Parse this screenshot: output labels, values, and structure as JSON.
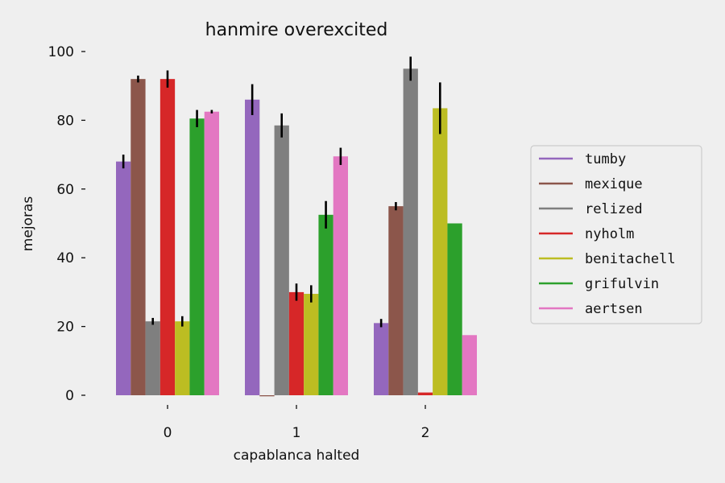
{
  "chart_data": {
    "type": "bar",
    "title": "hanmire overexcited",
    "xlabel": "capablanca halted",
    "ylabel": "mejoras",
    "categories": [
      "0",
      "1",
      "2"
    ],
    "ylim": [
      0,
      100
    ],
    "yticks": [
      0,
      20,
      40,
      60,
      80,
      100
    ],
    "ytick_labels": [
      "0",
      "20",
      "40",
      "60",
      "80",
      "100"
    ],
    "grid": false,
    "legend_position": "right",
    "error_bars": true,
    "series": [
      {
        "name": "tumby",
        "color": "#9467bd",
        "values": [
          68,
          86,
          21
        ],
        "errors": [
          2,
          4.5,
          1.2
        ]
      },
      {
        "name": "mexique",
        "color": "#8c564b",
        "values": [
          92,
          -0.3,
          55
        ],
        "errors": [
          1,
          0,
          1.2
        ]
      },
      {
        "name": "relized",
        "color": "#7f7f7f",
        "values": [
          21.5,
          78.5,
          95
        ],
        "errors": [
          1,
          3.5,
          3.5
        ]
      },
      {
        "name": "nyholm",
        "color": "#d62728",
        "values": [
          92,
          30,
          0.8
        ],
        "errors": [
          2.5,
          2.5,
          0
        ]
      },
      {
        "name": "benitachell",
        "color": "#bcbd22",
        "values": [
          21.5,
          29.5,
          83.5
        ],
        "errors": [
          1.5,
          2.5,
          7.5
        ]
      },
      {
        "name": "grifulvin",
        "color": "#2ca02c",
        "values": [
          80.5,
          52.5,
          50
        ],
        "errors": [
          2.5,
          4,
          0
        ]
      },
      {
        "name": "aertsen",
        "color": "#e377c2",
        "values": [
          82.5,
          69.5,
          17.5
        ],
        "errors": [
          0.5,
          2.5,
          0
        ]
      }
    ]
  }
}
